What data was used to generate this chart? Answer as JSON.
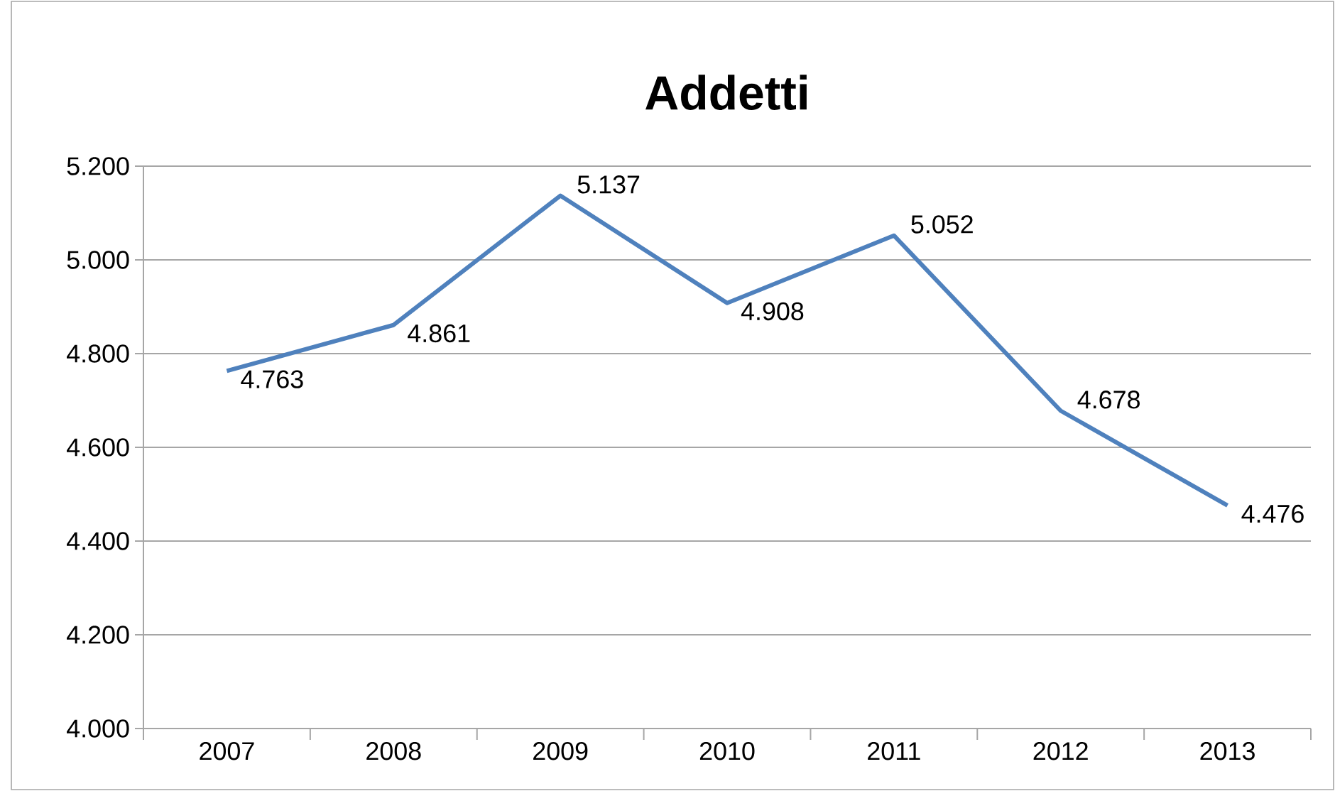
{
  "chart_data": {
    "type": "line",
    "title": "Addetti",
    "categories": [
      "2007",
      "2008",
      "2009",
      "2010",
      "2011",
      "2012",
      "2013"
    ],
    "series": [
      {
        "color": "#4f81bd",
        "values": [
          4763,
          4861,
          5137,
          4908,
          5052,
          4678,
          4476
        ],
        "value_labels": [
          "4.763",
          "4.861",
          "5.137",
          "4.908",
          "5.052",
          "4.678",
          "4.476"
        ]
      }
    ],
    "ylim": [
      4000,
      5200
    ],
    "yticks": [
      {
        "value": 4000,
        "label": "4.000"
      },
      {
        "value": 4200,
        "label": "4.200"
      },
      {
        "value": 4400,
        "label": "4.400"
      },
      {
        "value": 4600,
        "label": "4.600"
      },
      {
        "value": 4800,
        "label": "4.800"
      },
      {
        "value": 5000,
        "label": "5.000"
      },
      {
        "value": 5200,
        "label": "5.200"
      }
    ],
    "grid": "y"
  }
}
